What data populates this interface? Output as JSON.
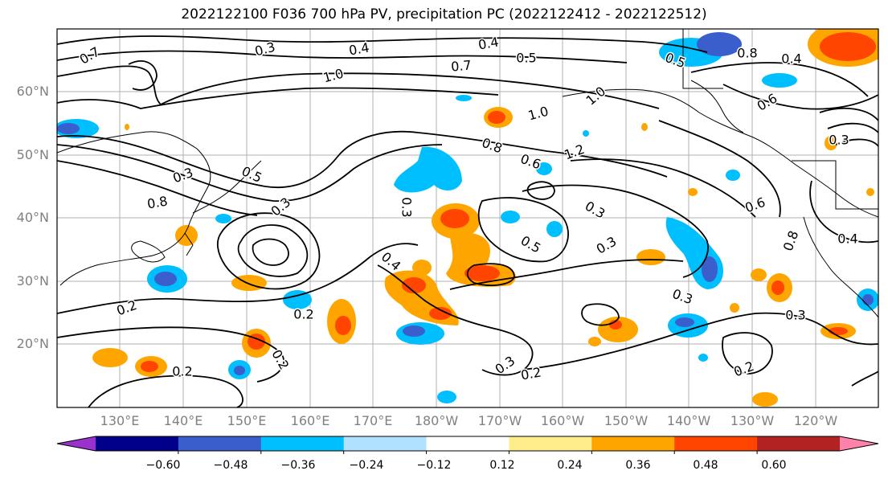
{
  "title": "2022122100 F036 700 hPa PV, precipitation PC (2022122412 - 2022122512)",
  "lat_labels": [
    "60°N",
    "50°N",
    "40°N",
    "30°N",
    "20°N"
  ],
  "lon_labels": [
    "130°E",
    "140°E",
    "150°E",
    "160°E",
    "170°E",
    "180°W",
    "170°W",
    "160°W",
    "150°W",
    "140°W",
    "130°W",
    "120°W"
  ],
  "colorbar": {
    "ticks": [
      "−0.60",
      "−0.48",
      "−0.36",
      "−0.24",
      "−0.12",
      "0.12",
      "0.24",
      "0.36",
      "0.48",
      "0.60"
    ],
    "colors": [
      "#9932cc",
      "#00008b",
      "#3a5fcd",
      "#00bfff",
      "#b0e2ff",
      "#ffffff",
      "#ffec8b",
      "#ffa500",
      "#ff4500",
      "#b22222",
      "#ff82ab"
    ]
  },
  "contour_labels": [
    "0.7",
    "0.3",
    "0.4",
    "0.4",
    "0.7",
    "0.5",
    "1.0",
    "1.0",
    "1.0",
    "1.2",
    "0.8",
    "0.6",
    "0.5",
    "0.3",
    "0.8",
    "0.3",
    "0.3",
    "0.4",
    "0.5",
    "0.3",
    "0.3",
    "0.2",
    "0.2",
    "0.2",
    "0.2",
    "0.3",
    "0.2",
    "0.3",
    "0.3",
    "0.2",
    "0.4",
    "0.8",
    "0.6",
    "0.5",
    "0.8",
    "0.4",
    "0.6",
    "0.3"
  ]
}
